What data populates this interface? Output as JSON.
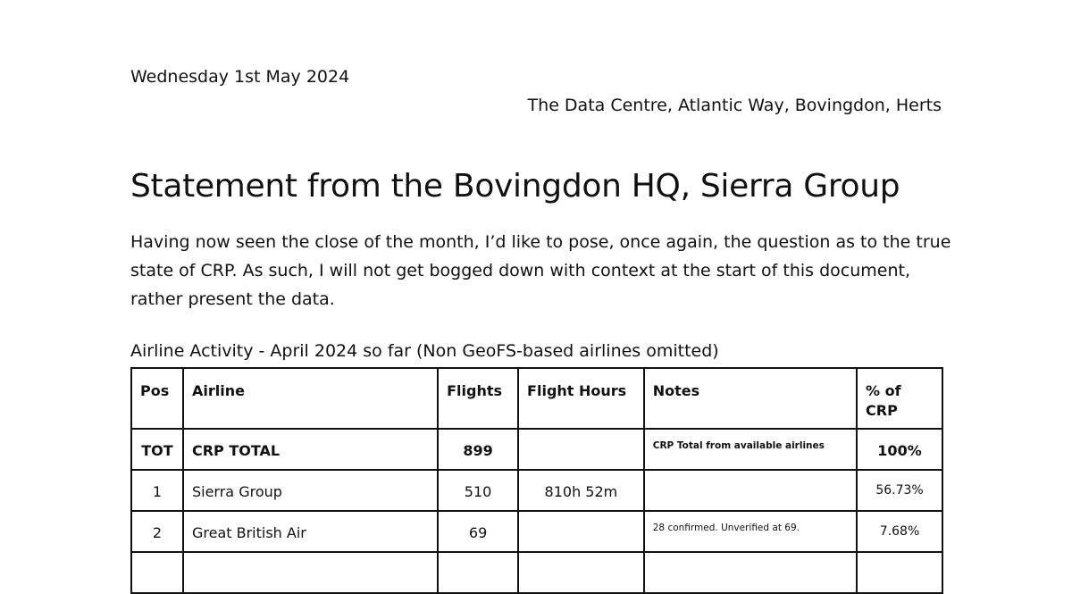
{
  "header": {
    "date": "Wednesday 1st May 2024",
    "address": "The Data Centre, Atlantic Way, Bovingdon, Herts"
  },
  "title": "Statement from the Bovingdon HQ, Sierra Group",
  "intro": "Having now seen the close of the month, I’d like to pose, once again, the question as to the true state of CRP. As such, I will not get bogged down with context at the start of this document, rather present the data.",
  "table": {
    "caption": "Airline Activity - April 2024 so far (Non GeoFS-based airlines omitted)",
    "columns": [
      "Pos",
      "Airline",
      "Flights",
      "Flight Hours",
      "Notes",
      "% of CRP"
    ],
    "rows": [
      {
        "pos": "TOT",
        "airline": "CRP TOTAL",
        "flights": "899",
        "hours": "",
        "notes": "CRP Total from available airlines",
        "pct": "100%"
      },
      {
        "pos": "1",
        "airline": "Sierra Group",
        "flights": "510",
        "hours": "810h 52m",
        "notes": "",
        "pct": "56.73%"
      },
      {
        "pos": "2",
        "airline": "Great British Air",
        "flights": "69",
        "hours": "",
        "notes": "28 confirmed. Unverified at 69.",
        "pct": "7.68%"
      },
      {
        "pos": "",
        "airline": "",
        "flights": "",
        "hours": "",
        "notes": "",
        "pct": ""
      }
    ]
  }
}
